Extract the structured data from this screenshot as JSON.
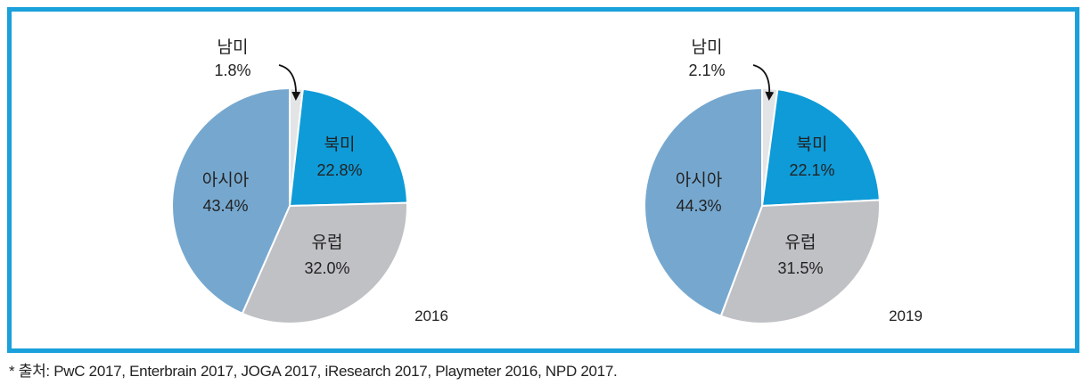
{
  "chart_data": [
    {
      "type": "pie",
      "year_label": "2016",
      "slices": [
        {
          "name": "남미",
          "value": 1.8,
          "label": "1.8%",
          "color": "#e3e4e6"
        },
        {
          "name": "북미",
          "value": 22.8,
          "label": "22.8%",
          "color": "#0e9bd8"
        },
        {
          "name": "유럽",
          "value": 32.0,
          "label": "32.0%",
          "color": "#c0c1c5"
        },
        {
          "name": "아시아",
          "value": 43.4,
          "label": "43.4%",
          "color": "#76a8cf"
        }
      ]
    },
    {
      "type": "pie",
      "year_label": "2019",
      "slices": [
        {
          "name": "남미",
          "value": 2.1,
          "label": "2.1%",
          "color": "#e3e4e6"
        },
        {
          "name": "북미",
          "value": 22.1,
          "label": "22.1%",
          "color": "#0e9bd8"
        },
        {
          "name": "유럽",
          "value": 31.5,
          "label": "31.5%",
          "color": "#c0c1c5"
        },
        {
          "name": "아시아",
          "value": 44.3,
          "label": "44.3%",
          "color": "#76a8cf"
        }
      ]
    }
  ],
  "source": "* 출처: PwC 2017, Enterbrain 2017, JOGA 2017, iResearch 2017, Playmeter 2016, NPD 2017.",
  "frame_color": "#1aa0da"
}
